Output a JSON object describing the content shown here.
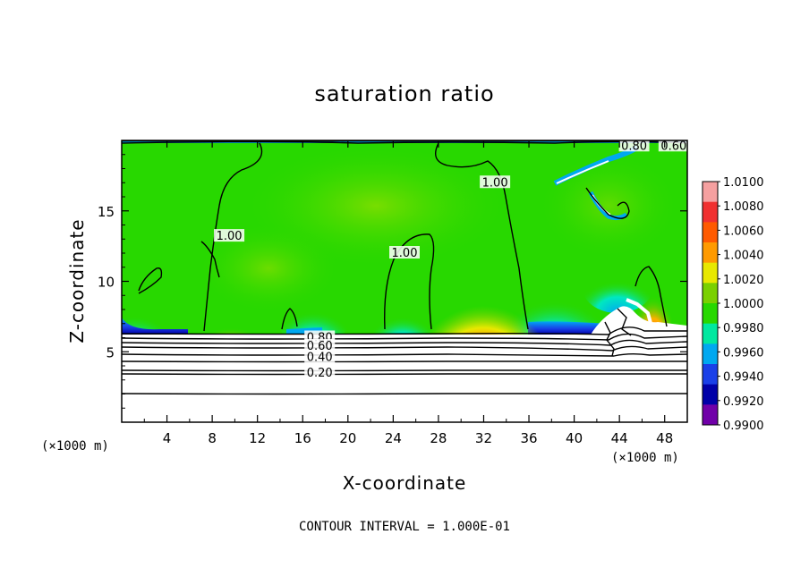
{
  "chart_data": {
    "type": "heatmap",
    "title": "saturation ratio",
    "xlabel": "X-coordinate",
    "ylabel": "Z-coordinate",
    "x_unit": "(×1000 m)",
    "xlim": [
      0,
      50
    ],
    "ylim": [
      0,
      20
    ],
    "x_ticks": [
      4,
      8,
      12,
      16,
      20,
      24,
      28,
      32,
      36,
      40,
      44,
      48
    ],
    "y_ticks": [
      5,
      10,
      15
    ],
    "colorbar": {
      "labels": [
        "1.0100",
        "1.0080",
        "1.0060",
        "1.0040",
        "1.0020",
        "1.0000",
        "0.9980",
        "0.9960",
        "0.9940",
        "0.9920",
        "0.9900"
      ],
      "colors": [
        "#f5a0a0",
        "#f03030",
        "#ff5a00",
        "#ff9a00",
        "#e8e800",
        "#7ad000",
        "#28d800",
        "#00e8a0",
        "#00a8f0",
        "#1a40e8",
        "#0000a8",
        "#7000a8"
      ]
    },
    "contour_labels": [
      {
        "text": "1.00",
        "x": 9.5,
        "z": 13.2
      },
      {
        "text": "1.00",
        "x": 25.0,
        "z": 12.0
      },
      {
        "text": "1.00",
        "x": 33.0,
        "z": 17.0
      },
      {
        "text": "0.80",
        "x": 17.5,
        "z": 6.0
      },
      {
        "text": "0.60",
        "x": 17.5,
        "z": 5.4
      },
      {
        "text": "0.40",
        "x": 17.5,
        "z": 4.6
      },
      {
        "text": "0.20",
        "x": 17.5,
        "z": 3.5
      },
      {
        "text": "0.80",
        "x": 45.3,
        "z": 19.6
      },
      {
        "text": "0.60",
        "x": 48.8,
        "z": 19.6
      }
    ],
    "footer": "CONTOUR INTERVAL = 1.000E-01"
  }
}
